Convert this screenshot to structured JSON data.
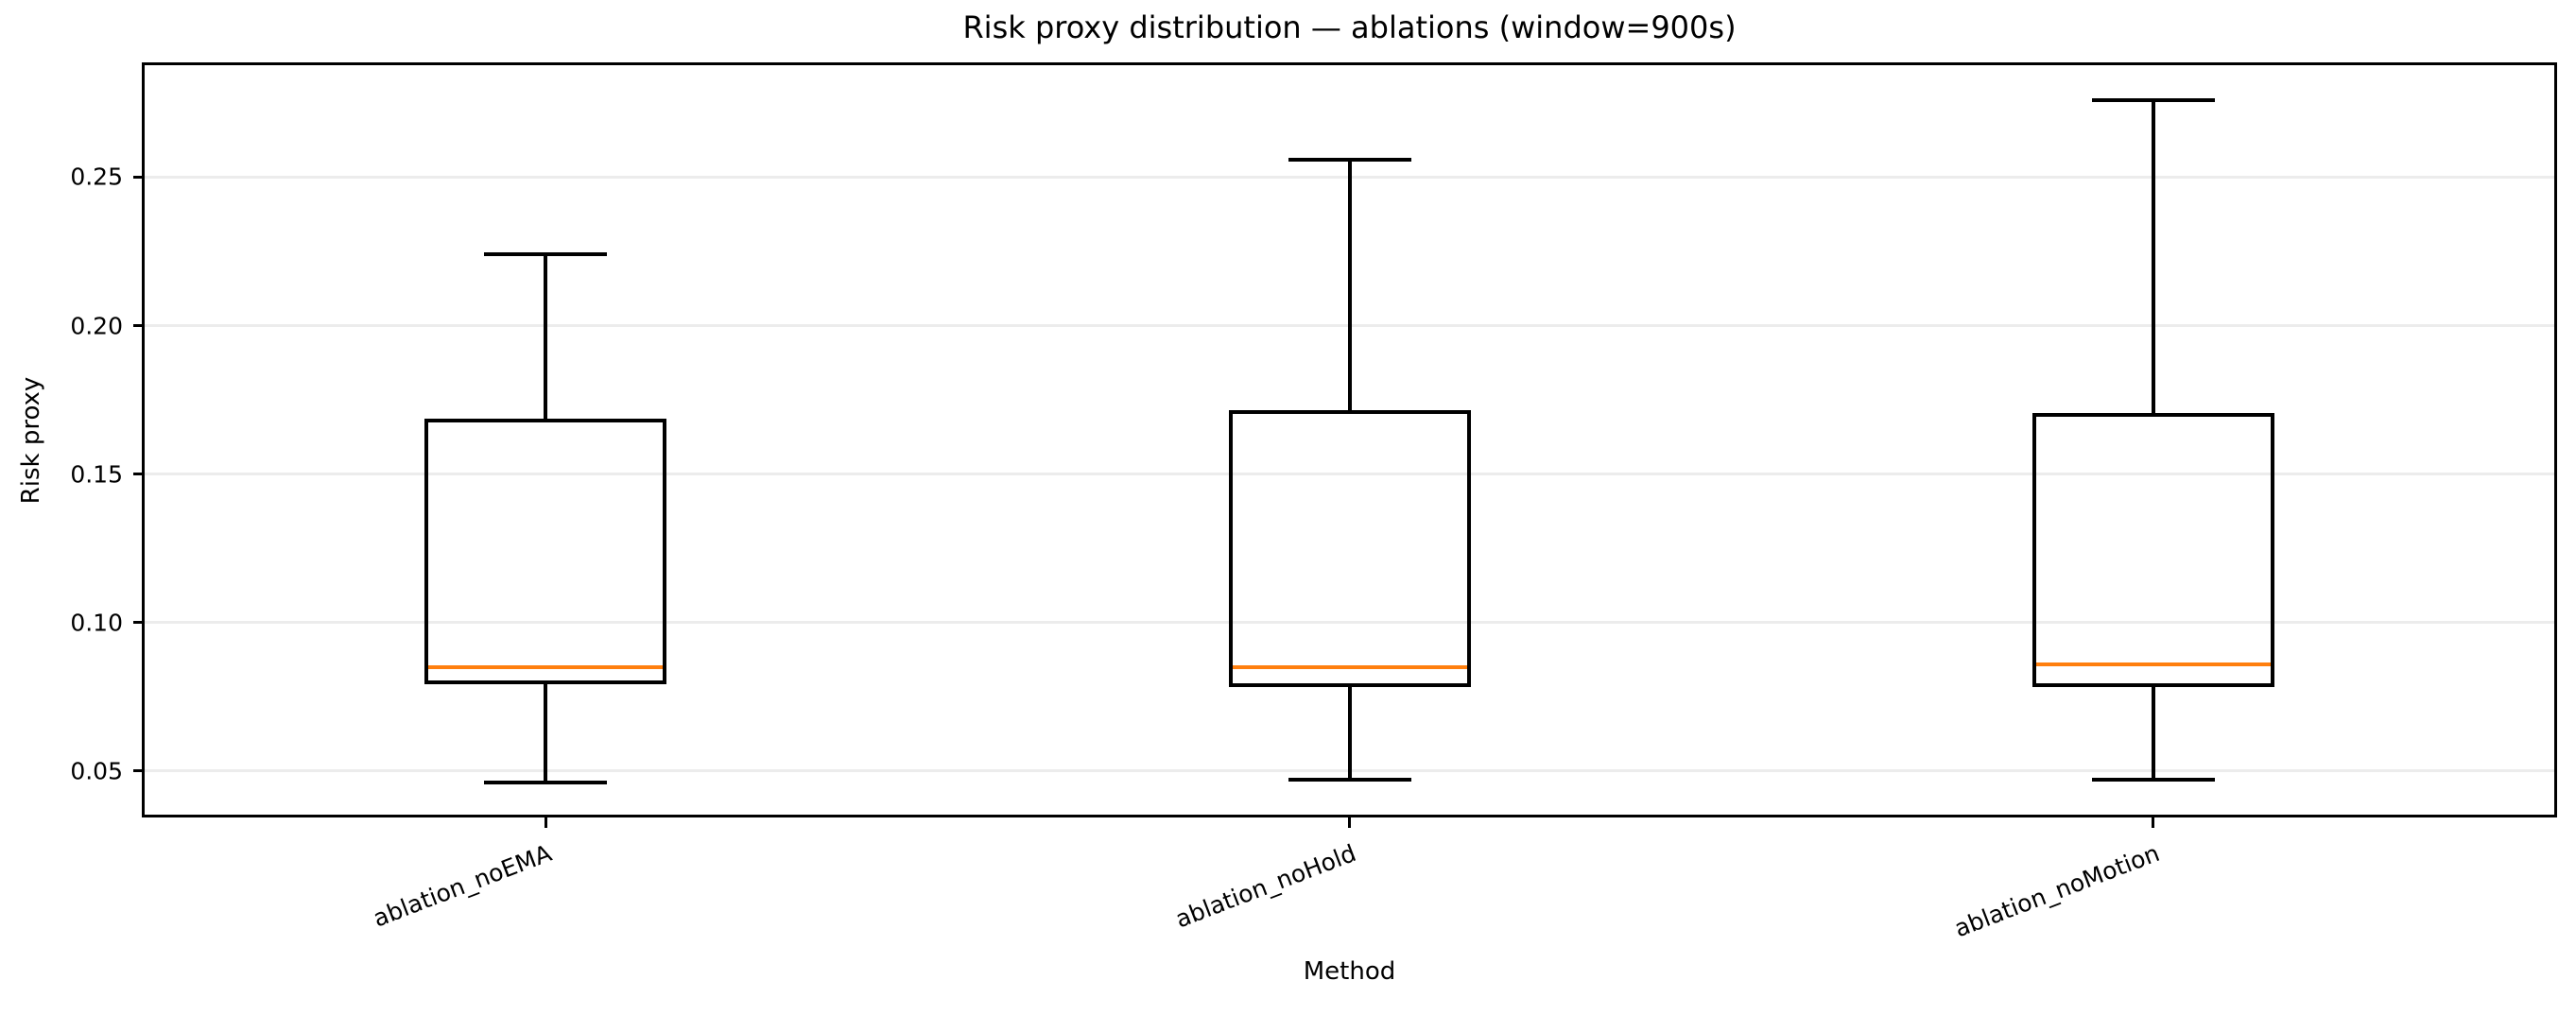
{
  "chart_data": {
    "type": "box",
    "title": "Risk proxy distribution — ablations (window=900s)",
    "xlabel": "Method",
    "ylabel": "Risk proxy",
    "categories": [
      "ablation_noEMA",
      "ablation_noHold",
      "ablation_noMotion"
    ],
    "series": [
      {
        "name": "ablation_noEMA",
        "whisker_low": 0.046,
        "q1": 0.08,
        "median": 0.085,
        "q3": 0.168,
        "whisker_high": 0.224
      },
      {
        "name": "ablation_noHold",
        "whisker_low": 0.047,
        "q1": 0.079,
        "median": 0.085,
        "q3": 0.171,
        "whisker_high": 0.256
      },
      {
        "name": "ablation_noMotion",
        "whisker_low": 0.047,
        "q1": 0.079,
        "median": 0.086,
        "q3": 0.17,
        "whisker_high": 0.276
      }
    ],
    "yticks": [
      0.05,
      0.1,
      0.15,
      0.2,
      0.25
    ],
    "ylim": [
      0.035,
      0.288
    ],
    "grid": "horizontal-only",
    "legend": "none",
    "outliers": "none",
    "x_tick_rotation_deg": 21,
    "colors": {
      "box": "#000000",
      "median": "#ff7f0e",
      "gridline": "#ececec",
      "text": "#000000",
      "background": "#ffffff"
    }
  }
}
